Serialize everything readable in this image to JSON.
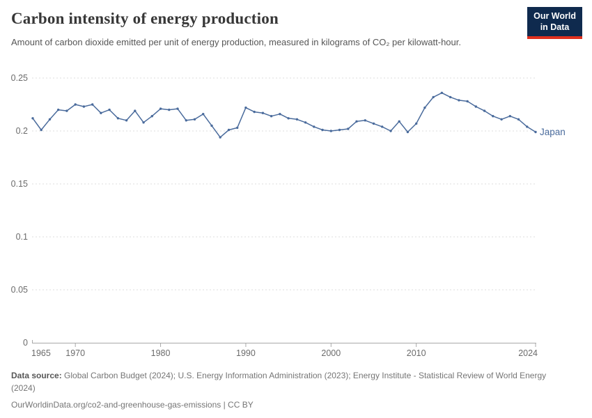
{
  "header": {
    "title": "Carbon intensity of energy production",
    "subtitle": "Amount of carbon dioxide emitted per unit of energy production, measured in kilograms of CO₂ per kilowatt-hour.",
    "logo": {
      "line1": "Our World",
      "line2": "in Data"
    }
  },
  "chart_data": {
    "type": "line",
    "title": "Carbon intensity of energy production",
    "xlabel": "",
    "ylabel": "kilograms of CO₂ per kilowatt-hour",
    "xlim": [
      1965,
      2024
    ],
    "ylim": [
      0,
      0.25
    ],
    "x_ticks": [
      1965,
      1970,
      1980,
      1990,
      2000,
      2010,
      2024
    ],
    "y_ticks": [
      0,
      0.05,
      0.1,
      0.15,
      0.2,
      0.25
    ],
    "grid": "horizontal-dashed",
    "legend_position": "end-of-line-label",
    "series": [
      {
        "name": "Japan",
        "color": "#4a6b9c",
        "x": [
          1965,
          1966,
          1967,
          1968,
          1969,
          1970,
          1971,
          1972,
          1973,
          1974,
          1975,
          1976,
          1977,
          1978,
          1979,
          1980,
          1981,
          1982,
          1983,
          1984,
          1985,
          1986,
          1987,
          1988,
          1989,
          1990,
          1991,
          1992,
          1993,
          1994,
          1995,
          1996,
          1997,
          1998,
          1999,
          2000,
          2001,
          2002,
          2003,
          2004,
          2005,
          2006,
          2007,
          2008,
          2009,
          2010,
          2011,
          2012,
          2013,
          2014,
          2015,
          2016,
          2017,
          2018,
          2019,
          2020,
          2021,
          2022,
          2023,
          2024
        ],
        "values": [
          0.212,
          0.201,
          0.211,
          0.22,
          0.219,
          0.225,
          0.223,
          0.225,
          0.217,
          0.22,
          0.212,
          0.21,
          0.219,
          0.208,
          0.214,
          0.221,
          0.22,
          0.221,
          0.21,
          0.211,
          0.216,
          0.205,
          0.194,
          0.201,
          0.203,
          0.222,
          0.218,
          0.217,
          0.214,
          0.216,
          0.212,
          0.211,
          0.208,
          0.204,
          0.201,
          0.2,
          0.201,
          0.202,
          0.209,
          0.21,
          0.207,
          0.204,
          0.2,
          0.209,
          0.199,
          0.207,
          0.222,
          0.232,
          0.236,
          0.232,
          0.229,
          0.228,
          0.223,
          0.219,
          0.214,
          0.211,
          0.214,
          0.211,
          0.204,
          0.199
        ]
      }
    ]
  },
  "footer": {
    "source_label": "Data source:",
    "source_text": " Global Carbon Budget (2024); U.S. Energy Information Administration (2023); Energy Institute - Statistical Review of World Energy (2024)",
    "link_text": "OurWorldinData.org/co2-and-greenhouse-gas-emissions | CC BY"
  },
  "colors": {
    "line": "#4a6b9c",
    "logo_bg": "#0f2a4e",
    "logo_stripe": "#e0301e",
    "grid": "#dcdcdc",
    "axis": "#a8a8a8"
  }
}
